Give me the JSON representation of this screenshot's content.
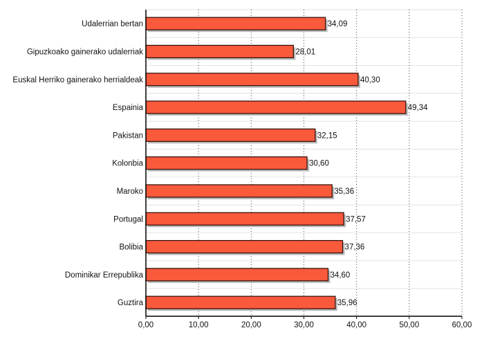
{
  "chart_data": {
    "type": "bar",
    "orientation": "horizontal",
    "categories": [
      "Udalerrian bertan",
      "Gipuzkoako gainerako udalerriak",
      "Euskal Herriko gainerako herrialdeak",
      "Espainia",
      "Pakistan",
      "Kolonbia",
      "Maroko",
      "Portugal",
      "Bolibia",
      "Dominikar Errepublika",
      "Guztira"
    ],
    "values": [
      34.09,
      28.01,
      40.3,
      49.34,
      32.15,
      30.6,
      35.36,
      37.57,
      37.36,
      34.6,
      35.96
    ],
    "value_labels": [
      "34,09",
      "28,01",
      "40,30",
      "49,34",
      "32,15",
      "30,60",
      "35,36",
      "37,57",
      "37,36",
      "34,60",
      "35,96"
    ],
    "xlim": [
      0,
      60
    ],
    "x_ticks": [
      "0,00",
      "10,00",
      "20,00",
      "30,00",
      "40,00",
      "50,00",
      "60,00"
    ],
    "title": "",
    "xlabel": "",
    "ylabel": "",
    "grid": "vertical dotted",
    "legend": "none",
    "colors": {
      "bar_fill": "#fa5a3c",
      "bar_stroke": "#2b0b06",
      "bar_shadow": "#b9b9b9",
      "grid_dotted": "#444444",
      "row_separator": "#e2e2e2",
      "axis": "#000000"
    }
  }
}
